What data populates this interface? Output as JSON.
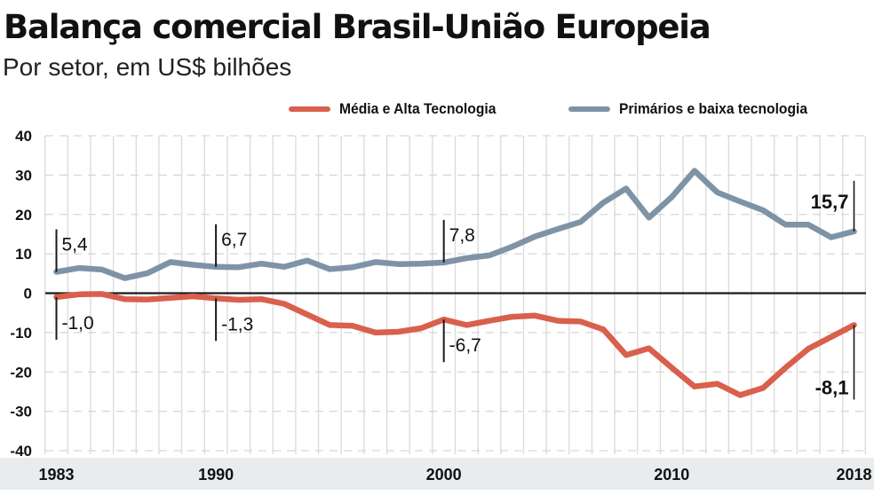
{
  "title": "Balança comercial Brasil-União Europeia",
  "subtitle": "Por setor, em US$ bilhões",
  "colors": {
    "series_red": "#d9604c",
    "series_gray": "#7f93a6",
    "axis_band": "#e9ecef",
    "grid": "#dcdcdc",
    "zero_line": "#1a1a1a",
    "annotation": "#1a1a1a"
  },
  "chart_data": {
    "type": "line",
    "title": "Balança comercial Brasil-União Europeia",
    "subtitle": "Por setor, em US$ bilhões",
    "xlabel": "",
    "ylabel": "",
    "ylim": [
      -40,
      40
    ],
    "xlim": [
      1983,
      2018
    ],
    "grid": true,
    "legend_position": "top-right",
    "y_ticks": [
      40,
      30,
      20,
      10,
      0,
      -10,
      -20,
      -30,
      -40
    ],
    "y_tick_labels": [
      "40",
      "30",
      "20",
      "10",
      "0",
      "-10",
      "-20",
      "-30",
      "-40"
    ],
    "x_ticks": [
      1983,
      1990,
      2000,
      2010,
      2018
    ],
    "x_tick_labels": [
      "1983",
      "1990",
      "2000",
      "2010",
      "2018"
    ],
    "x": [
      1983,
      1984,
      1985,
      1986,
      1987,
      1988,
      1989,
      1990,
      1991,
      1992,
      1993,
      1994,
      1995,
      1996,
      1997,
      1998,
      1999,
      2000,
      2001,
      2002,
      2003,
      2004,
      2005,
      2006,
      2007,
      2008,
      2009,
      2010,
      2011,
      2012,
      2013,
      2014,
      2015,
      2016,
      2017,
      2018
    ],
    "series": [
      {
        "name": "Média e Alta Tecnologia",
        "color": "#d9604c",
        "values": [
          -1.0,
          -0.3,
          -0.2,
          -1.5,
          -1.6,
          -1.2,
          -0.8,
          -1.3,
          -1.7,
          -1.5,
          -2.7,
          -5.4,
          -8.1,
          -8.3,
          -10.0,
          -9.8,
          -8.9,
          -6.7,
          -8.1,
          -7.0,
          -6.0,
          -5.7,
          -7.0,
          -7.2,
          -9.2,
          -15.7,
          -14.0,
          -18.9,
          -23.7,
          -23.0,
          -25.9,
          -24.1,
          -18.9,
          -14.1,
          -11.1,
          -8.1
        ]
      },
      {
        "name": "Primários e baixa tecnologia",
        "color": "#7f93a6",
        "values": [
          5.4,
          6.4,
          6.0,
          3.8,
          5.1,
          7.9,
          7.2,
          6.7,
          6.6,
          7.5,
          6.7,
          8.3,
          6.1,
          6.6,
          7.9,
          7.4,
          7.5,
          7.8,
          8.9,
          9.6,
          11.8,
          14.4,
          16.3,
          18.1,
          23.0,
          26.6,
          19.2,
          24.4,
          31.1,
          25.6,
          23.3,
          21.1,
          17.4,
          17.4,
          14.2,
          15.7
        ]
      }
    ],
    "annotations": [
      {
        "series": 1,
        "year": 1983,
        "text": "5,4",
        "side": "above",
        "bold": false
      },
      {
        "series": 1,
        "year": 1990,
        "text": "6,7",
        "side": "above",
        "bold": false
      },
      {
        "series": 1,
        "year": 2000,
        "text": "7,8",
        "side": "above",
        "bold": false
      },
      {
        "series": 1,
        "year": 2018,
        "text": "15,7",
        "side": "above-left",
        "bold": true
      },
      {
        "series": 0,
        "year": 1983,
        "text": "-1,0",
        "side": "below",
        "bold": false
      },
      {
        "series": 0,
        "year": 1990,
        "text": "-1,3",
        "side": "below",
        "bold": false
      },
      {
        "series": 0,
        "year": 2000,
        "text": "-6,7",
        "side": "below",
        "bold": false
      },
      {
        "series": 0,
        "year": 2018,
        "text": "-8,1",
        "side": "below-left",
        "bold": true
      }
    ]
  },
  "legend": [
    {
      "label": "Média e Alta Tecnologia",
      "color": "#d9604c"
    },
    {
      "label": "Primários e baixa tecnologia",
      "color": "#7f93a6"
    }
  ]
}
